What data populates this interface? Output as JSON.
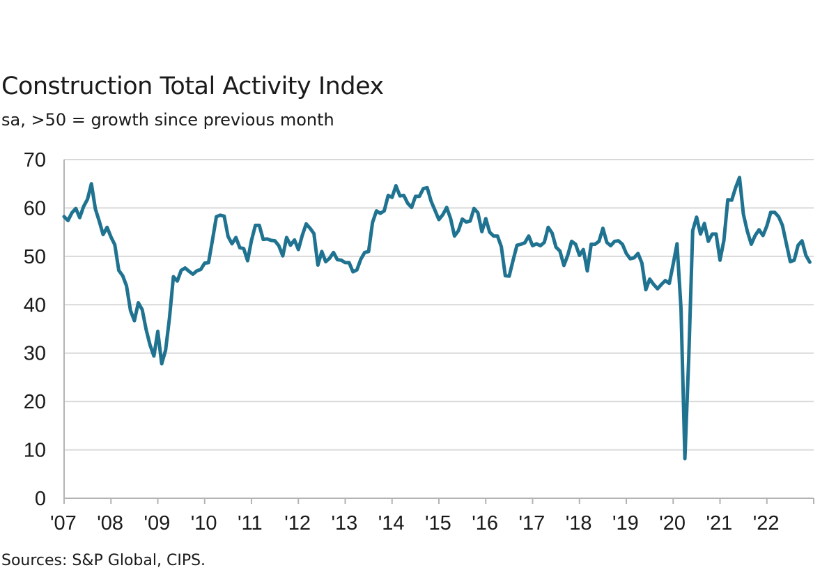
{
  "chart_data": {
    "type": "line",
    "title": "Construction Total Activity Index",
    "subtitle": "sa, >50 = growth since previous month",
    "source": "Sources: S&P Global, CIPS.",
    "xlabel": "",
    "ylabel": "",
    "ylim": [
      0,
      70
    ],
    "yticks": [
      0,
      10,
      20,
      30,
      40,
      50,
      60,
      70
    ],
    "xlim": [
      2007.0,
      2023.0
    ],
    "xtick_labels": [
      "'07",
      "'08",
      "'09",
      "'10",
      "'11",
      "'12",
      "'13",
      "'14",
      "'15",
      "'16",
      "'17",
      "'18",
      "'19",
      "'20",
      "'21",
      "'22"
    ],
    "grid": true,
    "line_color": "#1f7391",
    "series": [
      {
        "name": "",
        "x": [
          2007.0,
          2007.083,
          2007.167,
          2007.25,
          2007.333,
          2007.417,
          2007.5,
          2007.583,
          2007.667,
          2007.75,
          2007.833,
          2007.917,
          2008.0,
          2008.083,
          2008.167,
          2008.25,
          2008.333,
          2008.417,
          2008.5,
          2008.583,
          2008.667,
          2008.75,
          2008.833,
          2008.917,
          2009.0,
          2009.083,
          2009.167,
          2009.25,
          2009.333,
          2009.417,
          2009.5,
          2009.583,
          2009.667,
          2009.75,
          2009.833,
          2009.917,
          2010.0,
          2010.083,
          2010.167,
          2010.25,
          2010.333,
          2010.417,
          2010.5,
          2010.583,
          2010.667,
          2010.75,
          2010.833,
          2010.917,
          2011.0,
          2011.083,
          2011.167,
          2011.25,
          2011.333,
          2011.417,
          2011.5,
          2011.583,
          2011.667,
          2011.75,
          2011.833,
          2011.917,
          2012.0,
          2012.083,
          2012.167,
          2012.25,
          2012.333,
          2012.417,
          2012.5,
          2012.583,
          2012.667,
          2012.75,
          2012.833,
          2012.917,
          2013.0,
          2013.083,
          2013.167,
          2013.25,
          2013.333,
          2013.417,
          2013.5,
          2013.583,
          2013.667,
          2013.75,
          2013.833,
          2013.917,
          2014.0,
          2014.083,
          2014.167,
          2014.25,
          2014.333,
          2014.417,
          2014.5,
          2014.583,
          2014.667,
          2014.75,
          2014.833,
          2014.917,
          2015.0,
          2015.083,
          2015.167,
          2015.25,
          2015.333,
          2015.417,
          2015.5,
          2015.583,
          2015.667,
          2015.75,
          2015.833,
          2015.917,
          2016.0,
          2016.083,
          2016.167,
          2016.25,
          2016.333,
          2016.417,
          2016.5,
          2016.583,
          2016.667,
          2016.75,
          2016.833,
          2016.917,
          2017.0,
          2017.083,
          2017.167,
          2017.25,
          2017.333,
          2017.417,
          2017.5,
          2017.583,
          2017.667,
          2017.75,
          2017.833,
          2017.917,
          2018.0,
          2018.083,
          2018.167,
          2018.25,
          2018.333,
          2018.417,
          2018.5,
          2018.583,
          2018.667,
          2018.75,
          2018.833,
          2018.917,
          2019.0,
          2019.083,
          2019.167,
          2019.25,
          2019.333,
          2019.417,
          2019.5,
          2019.583,
          2019.667,
          2019.75,
          2019.833,
          2019.917,
          2020.0,
          2020.083,
          2020.167,
          2020.25,
          2020.333,
          2020.417,
          2020.5,
          2020.583,
          2020.667,
          2020.75,
          2020.833,
          2020.917,
          2021.0,
          2021.083,
          2021.167,
          2021.25,
          2021.333,
          2021.417,
          2021.5,
          2021.583,
          2021.667,
          2021.75,
          2021.833,
          2021.917,
          2022.0,
          2022.083,
          2022.167,
          2022.25,
          2022.333,
          2022.417,
          2022.5,
          2022.583,
          2022.667,
          2022.75,
          2022.833,
          2022.917
        ],
        "values": [
          58.2,
          57.4,
          59.0,
          59.9,
          58.0,
          60.3,
          61.8,
          65.0,
          59.8,
          57.3,
          54.5,
          56.0,
          54.0,
          52.4,
          47.1,
          46.0,
          43.9,
          38.8,
          36.7,
          40.4,
          39.0,
          34.9,
          31.7,
          29.4,
          34.5,
          27.8,
          30.6,
          37.3,
          45.8,
          44.9,
          47.1,
          47.6,
          46.9,
          46.3,
          47.0,
          47.3,
          48.6,
          48.7,
          53.4,
          58.2,
          58.5,
          58.3,
          54.1,
          52.6,
          53.9,
          51.8,
          51.6,
          49.1,
          53.3,
          56.4,
          56.4,
          53.5,
          53.6,
          53.3,
          53.2,
          52.2,
          50.1,
          53.9,
          52.3,
          53.4,
          51.4,
          54.3,
          56.7,
          55.8,
          54.7,
          48.2,
          51.0,
          48.9,
          49.6,
          50.8,
          49.3,
          49.2,
          48.7,
          48.7,
          46.8,
          47.2,
          49.4,
          50.8,
          51.0,
          57.0,
          59.4,
          58.9,
          59.4,
          62.6,
          62.2,
          64.6,
          62.5,
          62.6,
          61.0,
          60.1,
          62.4,
          62.4,
          64.0,
          64.2,
          61.4,
          59.5,
          57.6,
          58.6,
          60.1,
          57.8,
          54.2,
          55.3,
          57.7,
          57.1,
          57.3,
          59.9,
          59.0,
          55.1,
          57.8,
          55.0,
          54.2,
          54.2,
          52.0,
          46.0,
          45.9,
          49.2,
          52.3,
          52.5,
          52.8,
          54.2,
          52.2,
          52.6,
          52.2,
          52.9,
          56.0,
          54.8,
          51.9,
          51.1,
          48.1,
          50.2,
          53.1,
          52.5,
          50.2,
          51.4,
          47.0,
          52.5,
          52.5,
          53.1,
          55.8,
          52.9,
          52.2,
          53.1,
          53.2,
          52.5,
          50.6,
          49.5,
          49.7,
          50.6,
          48.6,
          43.1,
          45.3,
          44.2,
          43.3,
          44.2,
          45.0,
          44.4,
          48.4,
          52.6,
          39.3,
          8.2,
          28.9,
          55.3,
          58.1,
          54.6,
          56.8,
          53.1,
          54.6,
          54.6,
          49.2,
          53.3,
          61.7,
          61.6,
          64.2,
          66.3,
          58.7,
          55.2,
          52.5,
          54.3,
          55.5,
          54.3,
          56.3,
          59.1,
          59.1,
          58.2,
          56.4,
          52.6,
          48.9,
          49.2,
          52.3,
          53.2,
          50.2,
          48.8
        ]
      }
    ]
  }
}
